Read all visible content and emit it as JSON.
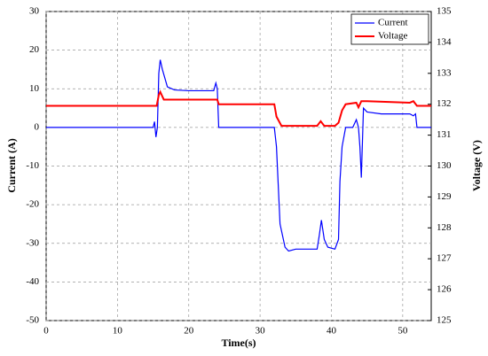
{
  "chart_data": {
    "type": "line",
    "x_label": "Time(s)",
    "y_label": "Current (A)",
    "y2_label": "Voltage (V)",
    "xlim": [
      0,
      54
    ],
    "xticks": [
      0,
      10,
      20,
      30,
      40,
      50
    ],
    "ylim": [
      -50,
      30
    ],
    "yticks": [
      -50,
      -40,
      -30,
      -20,
      -10,
      0,
      10,
      20,
      30
    ],
    "y2lim": [
      125,
      135
    ],
    "y2ticks": [
      125,
      126,
      127,
      128,
      129,
      130,
      131,
      132,
      133,
      134,
      135
    ],
    "grid": true,
    "legend": "top-right",
    "series": [
      {
        "name": "Current",
        "color": "#0000ff",
        "x": [
          0,
          15,
          15.2,
          15.4,
          15.6,
          15.8,
          16,
          16.3,
          17,
          18,
          20,
          23.5,
          23.8,
          24,
          24.2,
          30,
          32,
          32.3,
          32.8,
          33.5,
          34,
          35,
          38,
          38.3,
          38.6,
          39,
          39.5,
          40.5,
          41,
          41.2,
          41.5,
          42,
          43,
          43.5,
          43.8,
          44,
          44.2,
          44.5,
          45,
          47,
          51,
          51.5,
          51.8,
          52,
          52.3,
          54
        ],
        "values": [
          0,
          0,
          1.5,
          -2.5,
          0,
          14,
          17.5,
          15,
          10.5,
          9.7,
          9.5,
          9.5,
          11.5,
          10,
          0,
          0,
          0,
          -5,
          -25,
          -31,
          -32,
          -31.5,
          -31.5,
          -28,
          -24,
          -29,
          -31,
          -31.5,
          -29,
          -14,
          -5,
          0,
          0,
          2,
          0,
          -5,
          -13,
          5,
          4,
          3.5,
          3.5,
          3,
          3.5,
          0,
          0,
          0
        ]
      },
      {
        "name": "Voltage",
        "color": "#ff0000",
        "axis": "y2",
        "x": [
          0,
          15.5,
          15.8,
          16,
          16.5,
          24,
          24.2,
          32,
          32.3,
          33,
          38,
          38.5,
          39,
          40.5,
          41,
          41.5,
          42,
          43.5,
          43.8,
          44.2,
          45,
          51,
          51.5,
          52,
          54
        ],
        "values": [
          131.95,
          131.95,
          132.3,
          132.4,
          132.15,
          132.15,
          132.0,
          132.0,
          131.6,
          131.3,
          131.3,
          131.45,
          131.3,
          131.3,
          131.4,
          131.8,
          132.0,
          132.05,
          131.9,
          132.1,
          132.1,
          132.05,
          132.1,
          131.95,
          131.95
        ]
      }
    ]
  }
}
